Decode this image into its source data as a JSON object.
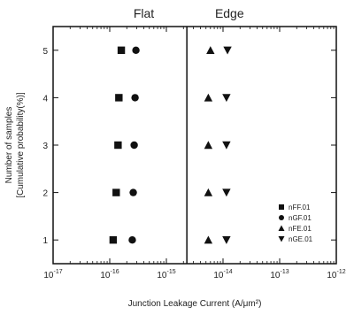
{
  "chart_data": {
    "type": "scatter",
    "x_axis": {
      "label": "Junction Leakage Current (A/μm²)",
      "scale": "log",
      "xlim": [
        1e-17,
        1e-12
      ],
      "tick_labels": [
        {
          "value": 1e-17,
          "base": "10",
          "exp": "-17"
        },
        {
          "value": 1e-16,
          "base": "10",
          "exp": "-16"
        },
        {
          "value": 1e-15,
          "base": "10",
          "exp": "-15"
        },
        {
          "value": 1e-14,
          "base": "10",
          "exp": "-14"
        },
        {
          "value": 1e-13,
          "base": "10",
          "exp": "-13"
        },
        {
          "value": 1e-12,
          "base": "10",
          "exp": "-12"
        }
      ]
    },
    "y_axis": {
      "label_line1": "Number of samples",
      "label_line2": "[Cumulative probability(%)]",
      "ylim": [
        0.5,
        5.5
      ],
      "ticks": [
        "1",
        "2",
        "3",
        "4",
        "5"
      ]
    },
    "regions": [
      {
        "title": "Flat",
        "x_center": 4e-16
      },
      {
        "title": "Edge",
        "x_center": 1.3e-14
      }
    ],
    "divider_x": 2.3e-15,
    "series": [
      {
        "name": "nFF.01",
        "marker": "square",
        "points": [
          [
            1.15e-16,
            1
          ],
          [
            1.3e-16,
            2
          ],
          [
            1.4e-16,
            3
          ],
          [
            1.45e-16,
            4
          ],
          [
            1.6e-16,
            5
          ]
        ]
      },
      {
        "name": "nGF.01",
        "marker": "circle",
        "points": [
          [
            2.5e-16,
            1
          ],
          [
            2.6e-16,
            2
          ],
          [
            2.7e-16,
            3
          ],
          [
            2.8e-16,
            4
          ],
          [
            2.9e-16,
            5
          ]
        ]
      },
      {
        "name": "nFE.01",
        "marker": "triangle-up",
        "points": [
          [
            5.5e-15,
            1
          ],
          [
            5.5e-15,
            2
          ],
          [
            5.5e-15,
            3
          ],
          [
            5.5e-15,
            4
          ],
          [
            6e-15,
            5
          ]
        ]
      },
      {
        "name": "nGE.01",
        "marker": "triangle-down",
        "points": [
          [
            1.15e-14,
            1
          ],
          [
            1.15e-14,
            2
          ],
          [
            1.15e-14,
            3
          ],
          [
            1.15e-14,
            4
          ],
          [
            1.2e-14,
            5
          ]
        ]
      }
    ],
    "legend_position": "bottom-right",
    "grid": false
  }
}
